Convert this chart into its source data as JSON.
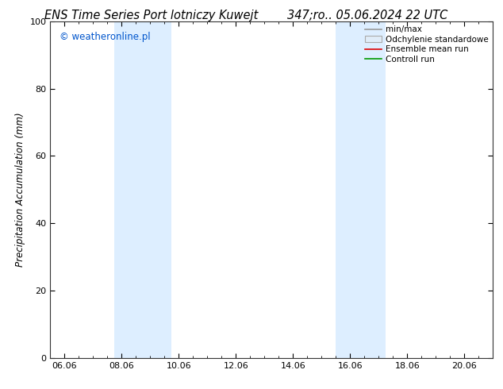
{
  "title_left": "ENS Time Series Port lotniczy Kuwejt",
  "title_right": "347;ro.. 05.06.2024 22 UTC",
  "ylabel": "Precipitation Accumulation (mm)",
  "watermark": "© weatheronline.pl",
  "watermark_color": "#0055cc",
  "ylim": [
    0,
    100
  ],
  "yticks": [
    0,
    20,
    40,
    60,
    80,
    100
  ],
  "xtick_labels": [
    "06.06",
    "08.06",
    "10.06",
    "12.06",
    "14.06",
    "16.06",
    "18.06",
    "20.06"
  ],
  "xtick_positions": [
    0,
    2,
    4,
    6,
    8,
    10,
    12,
    14
  ],
  "xlim_start": -0.5,
  "xlim_end": 15.0,
  "shaded_regions": [
    {
      "xstart": 1.75,
      "xend": 3.75,
      "color": "#ddeeff"
    },
    {
      "xstart": 9.5,
      "xend": 11.25,
      "color": "#ddeeff"
    }
  ],
  "legend_labels": [
    "min/max",
    "Odchylenie standardowe",
    "Ensemble mean run",
    "Controll run"
  ],
  "legend_line_colors": [
    "#999999",
    "#cccccc",
    "#dd0000",
    "#009900"
  ],
  "background_color": "#ffffff",
  "plot_bg_color": "#ffffff",
  "title_fontsize": 10.5,
  "axis_fontsize": 8.5,
  "tick_fontsize": 8,
  "legend_fontsize": 7.5
}
